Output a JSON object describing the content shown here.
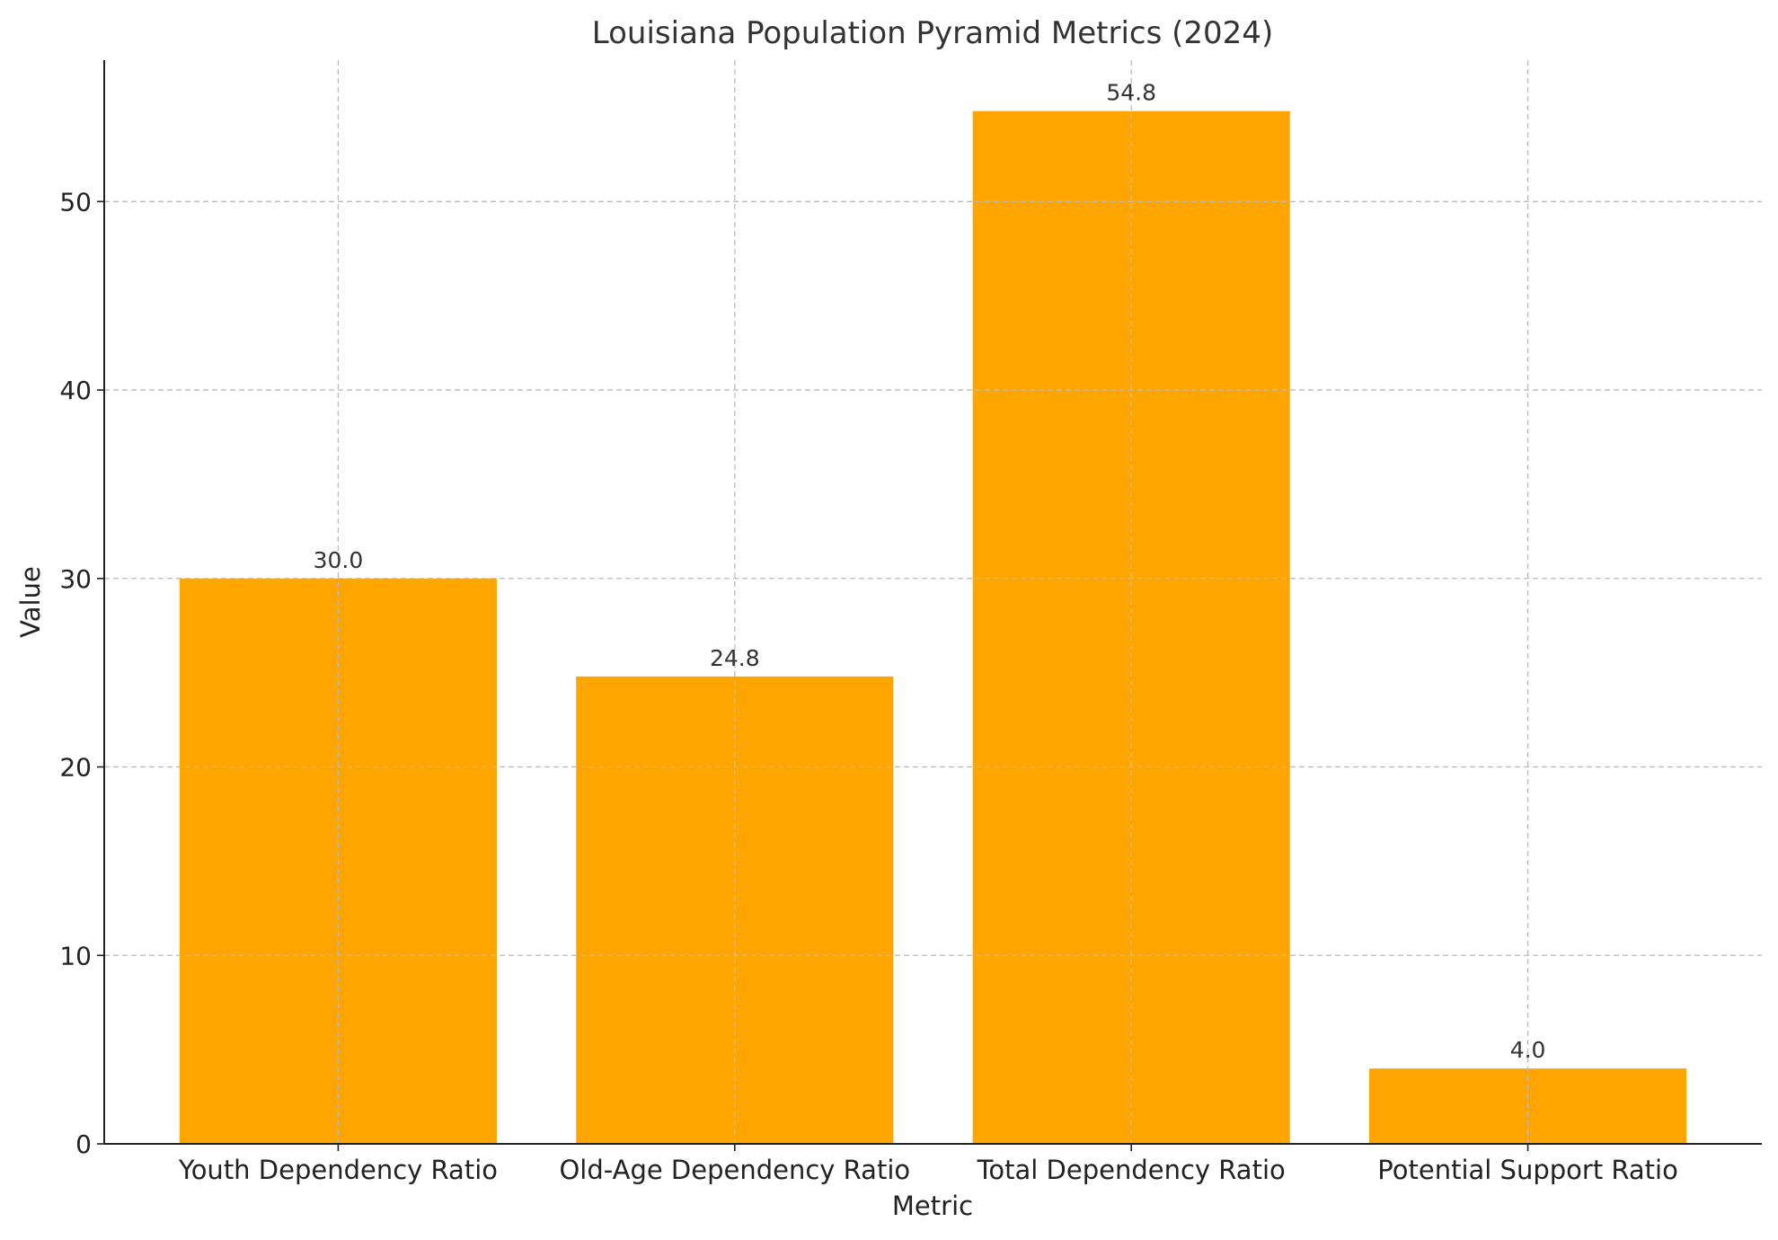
{
  "chart_data": {
    "type": "bar",
    "title": "Louisiana Population Pyramid Metrics (2024)",
    "xlabel": "Metric",
    "ylabel": "Value",
    "categories": [
      "Youth Dependency Ratio",
      "Old-Age Dependency Ratio",
      "Total Dependency Ratio",
      "Potential Support Ratio"
    ],
    "values": [
      30.0,
      24.8,
      54.8,
      4.0
    ],
    "data_labels": [
      "30.0",
      "24.8",
      "54.8",
      "4.0"
    ],
    "ylim": [
      0,
      57.5
    ],
    "yticks": [
      0,
      10,
      20,
      30,
      40,
      50
    ],
    "grid": true,
    "bar_color": "#FFA500"
  }
}
